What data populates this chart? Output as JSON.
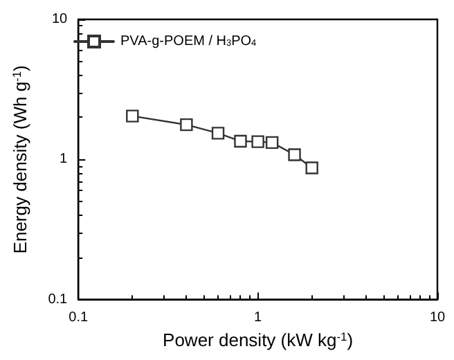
{
  "chart_data": {
    "type": "line",
    "xlabel": "Power density (kW kg$^{-1}$)",
    "ylabel": "Energy density (Wh g$^{-1}$)",
    "x": [
      0.2,
      0.4,
      0.6,
      0.8,
      1,
      1.2,
      1.6,
      2
    ],
    "series": [
      {
        "name": "PVA-g-POEM / H$_{3}$PO$_{4}$",
        "color": "#333333",
        "values": [
          2.04,
          1.77,
          1.54,
          1.35,
          1.34,
          1.32,
          1.08,
          0.87
        ]
      }
    ],
    "log": "xy",
    "xlim": [
      0.1,
      10
    ],
    "ylim": [
      0.1,
      10
    ],
    "xticks": [
      0.1,
      1,
      10
    ],
    "yticks": [
      0.1,
      1,
      10
    ],
    "marker": "square",
    "line_style": "solid",
    "grid": false,
    "legend": "top left"
  }
}
